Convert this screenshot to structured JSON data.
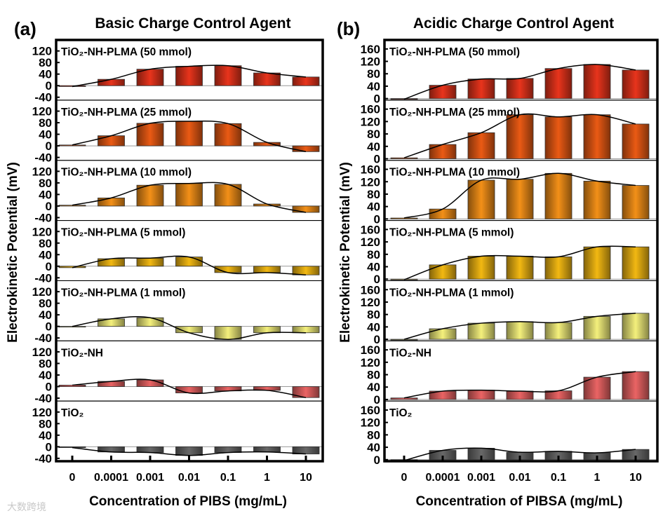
{
  "chart_data": [
    {
      "type": "bar",
      "panel_label": "(a)",
      "title": "Basic Charge Control Agent",
      "xlabel": "Concentration of PIBS (mg/mL)",
      "ylabel": "Electrokinetic Potential (mV)",
      "categories": [
        "0",
        "0.0001",
        "0.001",
        "0.01",
        "0.1",
        "1",
        "10"
      ],
      "yticks": [
        -40,
        0,
        40,
        80,
        120
      ],
      "ylim": [
        -50,
        158
      ],
      "series": [
        {
          "name": "TiO₂-NH-PLMA (50 mmol)",
          "color": "#e8341c",
          "values": [
            -3,
            22,
            57,
            67,
            69,
            44,
            30
          ]
        },
        {
          "name": "TiO₂-NH-PLMA (25 mmol)",
          "color": "#ea5a14",
          "values": [
            3,
            35,
            78,
            85,
            77,
            12,
            -20
          ]
        },
        {
          "name": "TiO₂-NH-PLMA (10 mmol)",
          "color": "#f39018",
          "values": [
            3,
            28,
            72,
            78,
            75,
            7,
            -22
          ]
        },
        {
          "name": "TiO₂-NH-PLMA (5 mmol)",
          "color": "#f2b812",
          "values": [
            -5,
            26,
            28,
            32,
            -22,
            -22,
            -30
          ]
        },
        {
          "name": "TiO₂-NH-PLMA (1 mmol)",
          "color": "#f4f07c",
          "values": [
            0,
            26,
            30,
            -22,
            -45,
            -22,
            -22
          ]
        },
        {
          "name": "TiO₂-NH",
          "color": "#ea6464",
          "values": [
            5,
            18,
            23,
            -22,
            -15,
            -13,
            -38
          ]
        },
        {
          "name": "TiO₂",
          "color": "#686868",
          "values": [
            -3,
            -18,
            -20,
            -30,
            -20,
            -18,
            -25
          ]
        }
      ]
    },
    {
      "type": "bar",
      "panel_label": "(b)",
      "title": "Acidic Charge Control Agent",
      "xlabel": "Concentration of PIBSA (mg/mL)",
      "ylabel": "Electrokinetic Potential (mV)",
      "categories": [
        "0",
        "0.0001",
        "0.001",
        "0.01",
        "0.1",
        "1",
        "10"
      ],
      "yticks": [
        0,
        40,
        80,
        120,
        160
      ],
      "ylim": [
        -5,
        189
      ],
      "series": [
        {
          "name": "TiO₂-NH-PLMA (50 mmol)",
          "color": "#e8341c",
          "values": [
            -2,
            43,
            63,
            65,
            97,
            110,
            92
          ]
        },
        {
          "name": "TiO₂-NH-PLMA (25 mmol)",
          "color": "#ea5a14",
          "values": [
            3,
            46,
            84,
            142,
            135,
            142,
            112
          ]
        },
        {
          "name": "TiO₂-NH-PLMA (10 mmol)",
          "color": "#f39018",
          "values": [
            3,
            32,
            125,
            128,
            147,
            122,
            108
          ]
        },
        {
          "name": "TiO₂-NH-PLMA (5 mmol)",
          "color": "#f2b812",
          "values": [
            -2,
            46,
            74,
            74,
            72,
            104,
            104
          ]
        },
        {
          "name": "TiO₂-NH-PLMA (1 mmol)",
          "color": "#f4f07c",
          "values": [
            0,
            34,
            52,
            57,
            54,
            74,
            84
          ]
        },
        {
          "name": "TiO₂-NH",
          "color": "#ea6464",
          "values": [
            5,
            27,
            30,
            27,
            28,
            72,
            90
          ]
        },
        {
          "name": "TiO₂",
          "color": "#686868",
          "values": [
            -3,
            30,
            37,
            24,
            27,
            22,
            33
          ]
        }
      ]
    }
  ],
  "watermark": "大数跨境"
}
